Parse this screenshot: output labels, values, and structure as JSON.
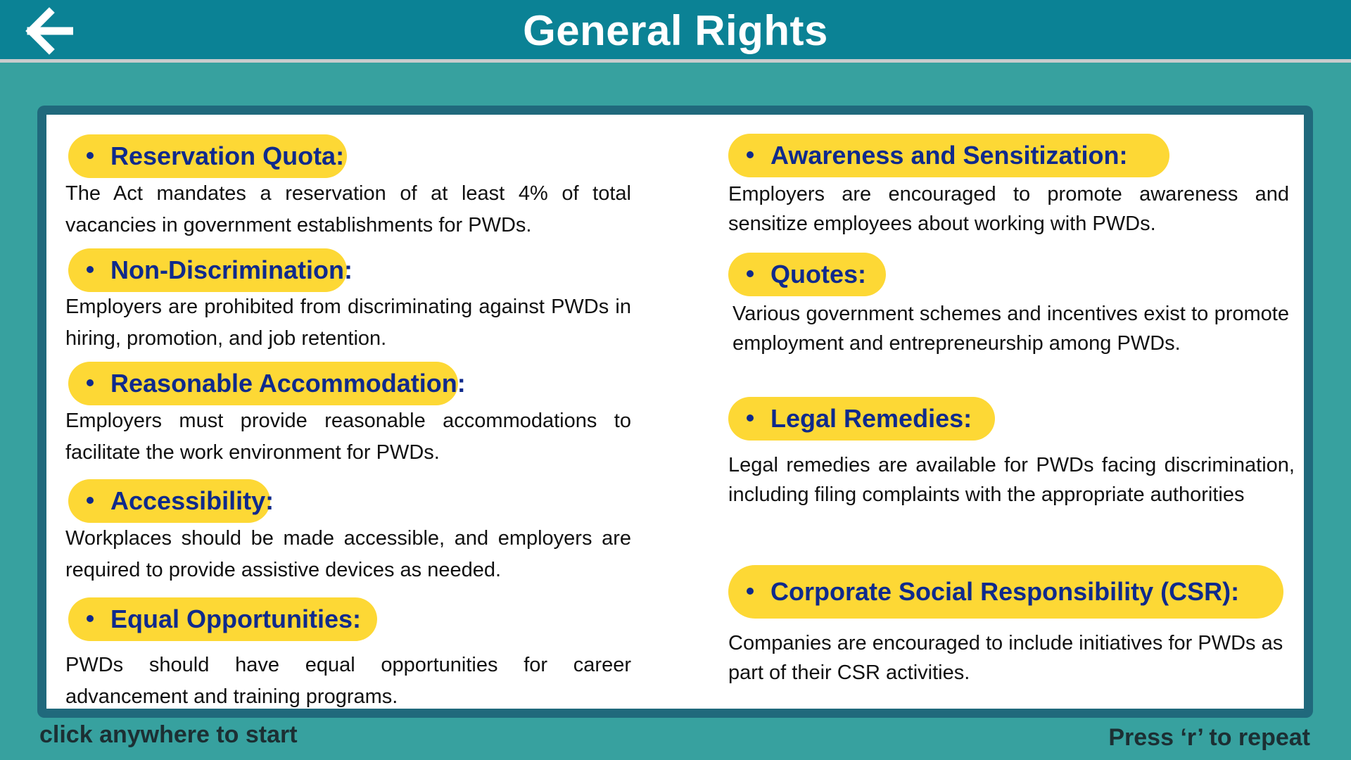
{
  "header": {
    "title": "General Rights",
    "back_icon": "arrow-left-icon"
  },
  "left_items": [
    {
      "heading": "Reservation Quota:",
      "text": "The Act mandates a reservation of at least 4% of total vacancies in government establishments for PWDs."
    },
    {
      "heading": "Non-Discrimination:",
      "text": "Employers are prohibited from discriminating against PWDs in hiring, promotion, and job retention."
    },
    {
      "heading": "Reasonable Accommodation:",
      "text": "Employers must provide reasonable accommodations to facilitate the work environment for PWDs."
    },
    {
      "heading": "Accessibility:",
      "text": "Workplaces should be made accessible, and employers are required to provide assistive devices as needed."
    },
    {
      "heading": "Equal Opportunities:",
      "text": "PWDs should have equal opportunities for career advancement and training programs."
    }
  ],
  "right_items": [
    {
      "heading": "Awareness and Sensitization:",
      "text": "Employers are encouraged to promote awareness and sensitize employees about working with PWDs."
    },
    {
      "heading": "Quotes:",
      "text": "Various government schemes and incentives exist to promote employment and entrepreneurship among PWDs."
    },
    {
      "heading": "Legal Remedies:",
      "text": "Legal remedies are available for PWDs facing discrimination, including filing complaints with the appropriate authorities"
    },
    {
      "heading": "Corporate Social Responsibility (CSR):",
      "text": "Companies are encouraged to include initiatives for PWDs as part of their CSR activities."
    }
  ],
  "footer": {
    "left_hint": "click anywhere to start",
    "right_hint": "Press ‘r’ to repeat"
  },
  "colors": {
    "background": "#37a19f",
    "header": "#0b8295",
    "card_border": "#20697c",
    "pill": "#fdd835",
    "heading_text": "#0f2a8c"
  }
}
